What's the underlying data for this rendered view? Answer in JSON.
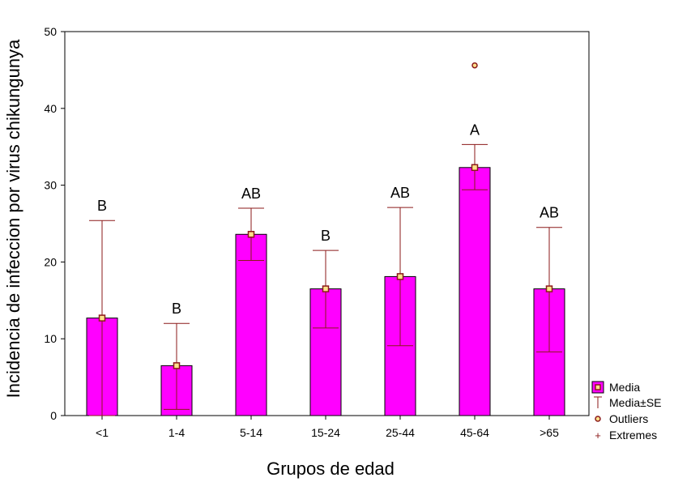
{
  "chart_data": {
    "type": "bar",
    "xlabel": "Grupos de edad",
    "ylabel": "Incidencia de infeccion por virus chikungunya",
    "ylim": [
      0,
      50
    ],
    "yticks": [
      "0",
      "10",
      "20",
      "30",
      "40",
      "50"
    ],
    "categories": [
      "<1",
      "1-4",
      "5-14",
      "15-24",
      "25-44",
      "45-64",
      ">65"
    ],
    "values": [
      12.7,
      6.5,
      23.6,
      16.5,
      18.1,
      32.3,
      16.5
    ],
    "se_upper": [
      25.4,
      12.0,
      27.0,
      21.5,
      27.1,
      35.3,
      24.5
    ],
    "se_lower": [
      0,
      0.8,
      20.2,
      11.4,
      9.1,
      29.4,
      8.3
    ],
    "group_letters": [
      "B",
      "B",
      "AB",
      "B",
      "AB",
      "A",
      "AB"
    ],
    "outliers": [
      {
        "category": "45-64",
        "value": 45.6
      }
    ],
    "legend": [
      "Media",
      "Media±SE",
      "Outliers",
      "Extremes"
    ],
    "legend_position": "bottom-right",
    "grid": false,
    "colors": {
      "bar": "#ff00ff",
      "whisker": "#8b1a1a",
      "marker_fill": "#ffe08a"
    }
  }
}
